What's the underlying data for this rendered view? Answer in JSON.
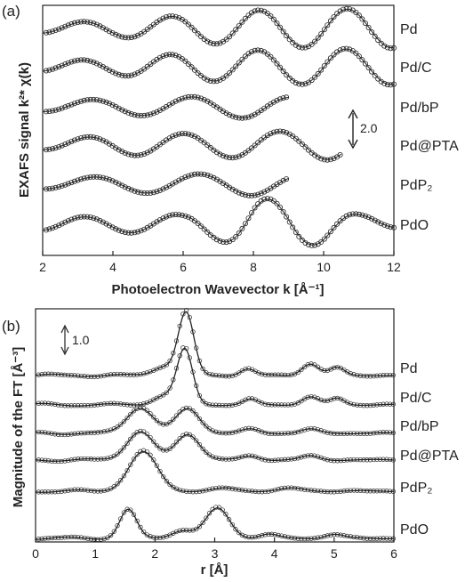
{
  "chart_data": [
    {
      "panel": "(a)",
      "type": "line",
      "xlabel": "Photoelectron Wavevector k [Å⁻¹]",
      "ylabel": "EXAFS signal k²* χ(k)",
      "xlim": [
        2,
        12
      ],
      "xticks": [
        "2",
        "4",
        "6",
        "8",
        "10",
        "12"
      ],
      "scale_bar": "2.0",
      "series": [
        {
          "name": "Pd",
          "k_max": 12.0,
          "amp": [
            [
              2,
              0.3
            ],
            [
              4,
              0.5
            ],
            [
              6,
              0.8
            ],
            [
              8,
              1.1
            ],
            [
              10,
              1.2
            ],
            [
              12,
              1.2
            ]
          ],
          "phase": 0.0,
          "freq": 2.5
        },
        {
          "name": "Pd/C",
          "k_max": 12.0,
          "amp": [
            [
              2,
              0.3
            ],
            [
              4,
              0.5
            ],
            [
              6,
              0.8
            ],
            [
              8,
              1.0
            ],
            [
              10,
              1.1
            ],
            [
              12,
              1.1
            ]
          ],
          "phase": 0.1,
          "freq": 2.5
        },
        {
          "name": "Pd/bP",
          "k_max": 9.0,
          "amp": [
            [
              2,
              0.3
            ],
            [
              4,
              0.5
            ],
            [
              6,
              0.6
            ],
            [
              8,
              0.7
            ],
            [
              9,
              0.6
            ]
          ],
          "phase": 0.4,
          "freq": 2.2
        },
        {
          "name": "Pd@PTA",
          "k_max": 10.5,
          "amp": [
            [
              2,
              0.3
            ],
            [
              4,
              0.6
            ],
            [
              6,
              0.7
            ],
            [
              8,
              0.8
            ],
            [
              10,
              0.9
            ]
          ],
          "phase": 0.3,
          "freq": 2.3
        },
        {
          "name": "PdP₂",
          "k_max": 9.0,
          "amp": [
            [
              2,
              0.3
            ],
            [
              4,
              0.5
            ],
            [
              6,
              0.6
            ],
            [
              8,
              0.7
            ],
            [
              9,
              0.6
            ]
          ],
          "phase": 0.6,
          "freq": 2.1
        },
        {
          "name": "PdO",
          "k_max": 12.0,
          "amp": [
            [
              2,
              0.4
            ],
            [
              4,
              0.5
            ],
            [
              6,
              0.6
            ],
            [
              7,
              1.0
            ],
            [
              8,
              1.6
            ],
            [
              9,
              1.5
            ],
            [
              10,
              1.2
            ],
            [
              11,
              0.6
            ],
            [
              12,
              0.3
            ]
          ],
          "phase": 0.2,
          "freq": 2.4
        }
      ]
    },
    {
      "panel": "(b)",
      "type": "line",
      "xlabel": "r [Å]",
      "ylabel": "Magnitude of the FT [Å⁻³]",
      "xlim": [
        0,
        6
      ],
      "xticks": [
        "0",
        "1",
        "2",
        "3",
        "4",
        "5",
        "6"
      ],
      "scale_bar": "1.0",
      "series": [
        {
          "name": "Pd",
          "peaks": [
            [
              2.15,
              0.35,
              0.18
            ],
            [
              2.52,
              2.4,
              0.13
            ],
            [
              3.55,
              0.25,
              0.12
            ],
            [
              4.6,
              0.45,
              0.14
            ],
            [
              5.05,
              0.3,
              0.12
            ]
          ]
        },
        {
          "name": "Pd/C",
          "peaks": [
            [
              2.15,
              0.35,
              0.18
            ],
            [
              2.5,
              2.1,
              0.13
            ],
            [
              3.6,
              0.2,
              0.12
            ],
            [
              4.6,
              0.3,
              0.14
            ],
            [
              5.05,
              0.25,
              0.12
            ]
          ]
        },
        {
          "name": "Pd/bP",
          "peaks": [
            [
              1.75,
              1.0,
              0.22
            ],
            [
              2.55,
              0.95,
              0.2
            ],
            [
              3.6,
              0.15,
              0.15
            ],
            [
              4.6,
              0.15,
              0.15
            ]
          ]
        },
        {
          "name": "Pd@PTA",
          "peaks": [
            [
              1.75,
              1.1,
              0.22
            ],
            [
              2.55,
              1.0,
              0.2
            ],
            [
              3.6,
              0.15,
              0.15
            ],
            [
              4.6,
              0.15,
              0.15
            ]
          ]
        },
        {
          "name": "PdP₂",
          "peaks": [
            [
              1.8,
              1.5,
              0.24
            ],
            [
              3.2,
              0.1,
              0.2
            ],
            [
              4.3,
              0.1,
              0.2
            ]
          ]
        },
        {
          "name": "PdO",
          "peaks": [
            [
              1.55,
              1.1,
              0.14
            ],
            [
              2.45,
              0.3,
              0.18
            ],
            [
              3.05,
              1.15,
              0.2
            ],
            [
              3.9,
              0.15,
              0.15
            ],
            [
              5.0,
              0.15,
              0.15
            ]
          ]
        }
      ]
    }
  ]
}
